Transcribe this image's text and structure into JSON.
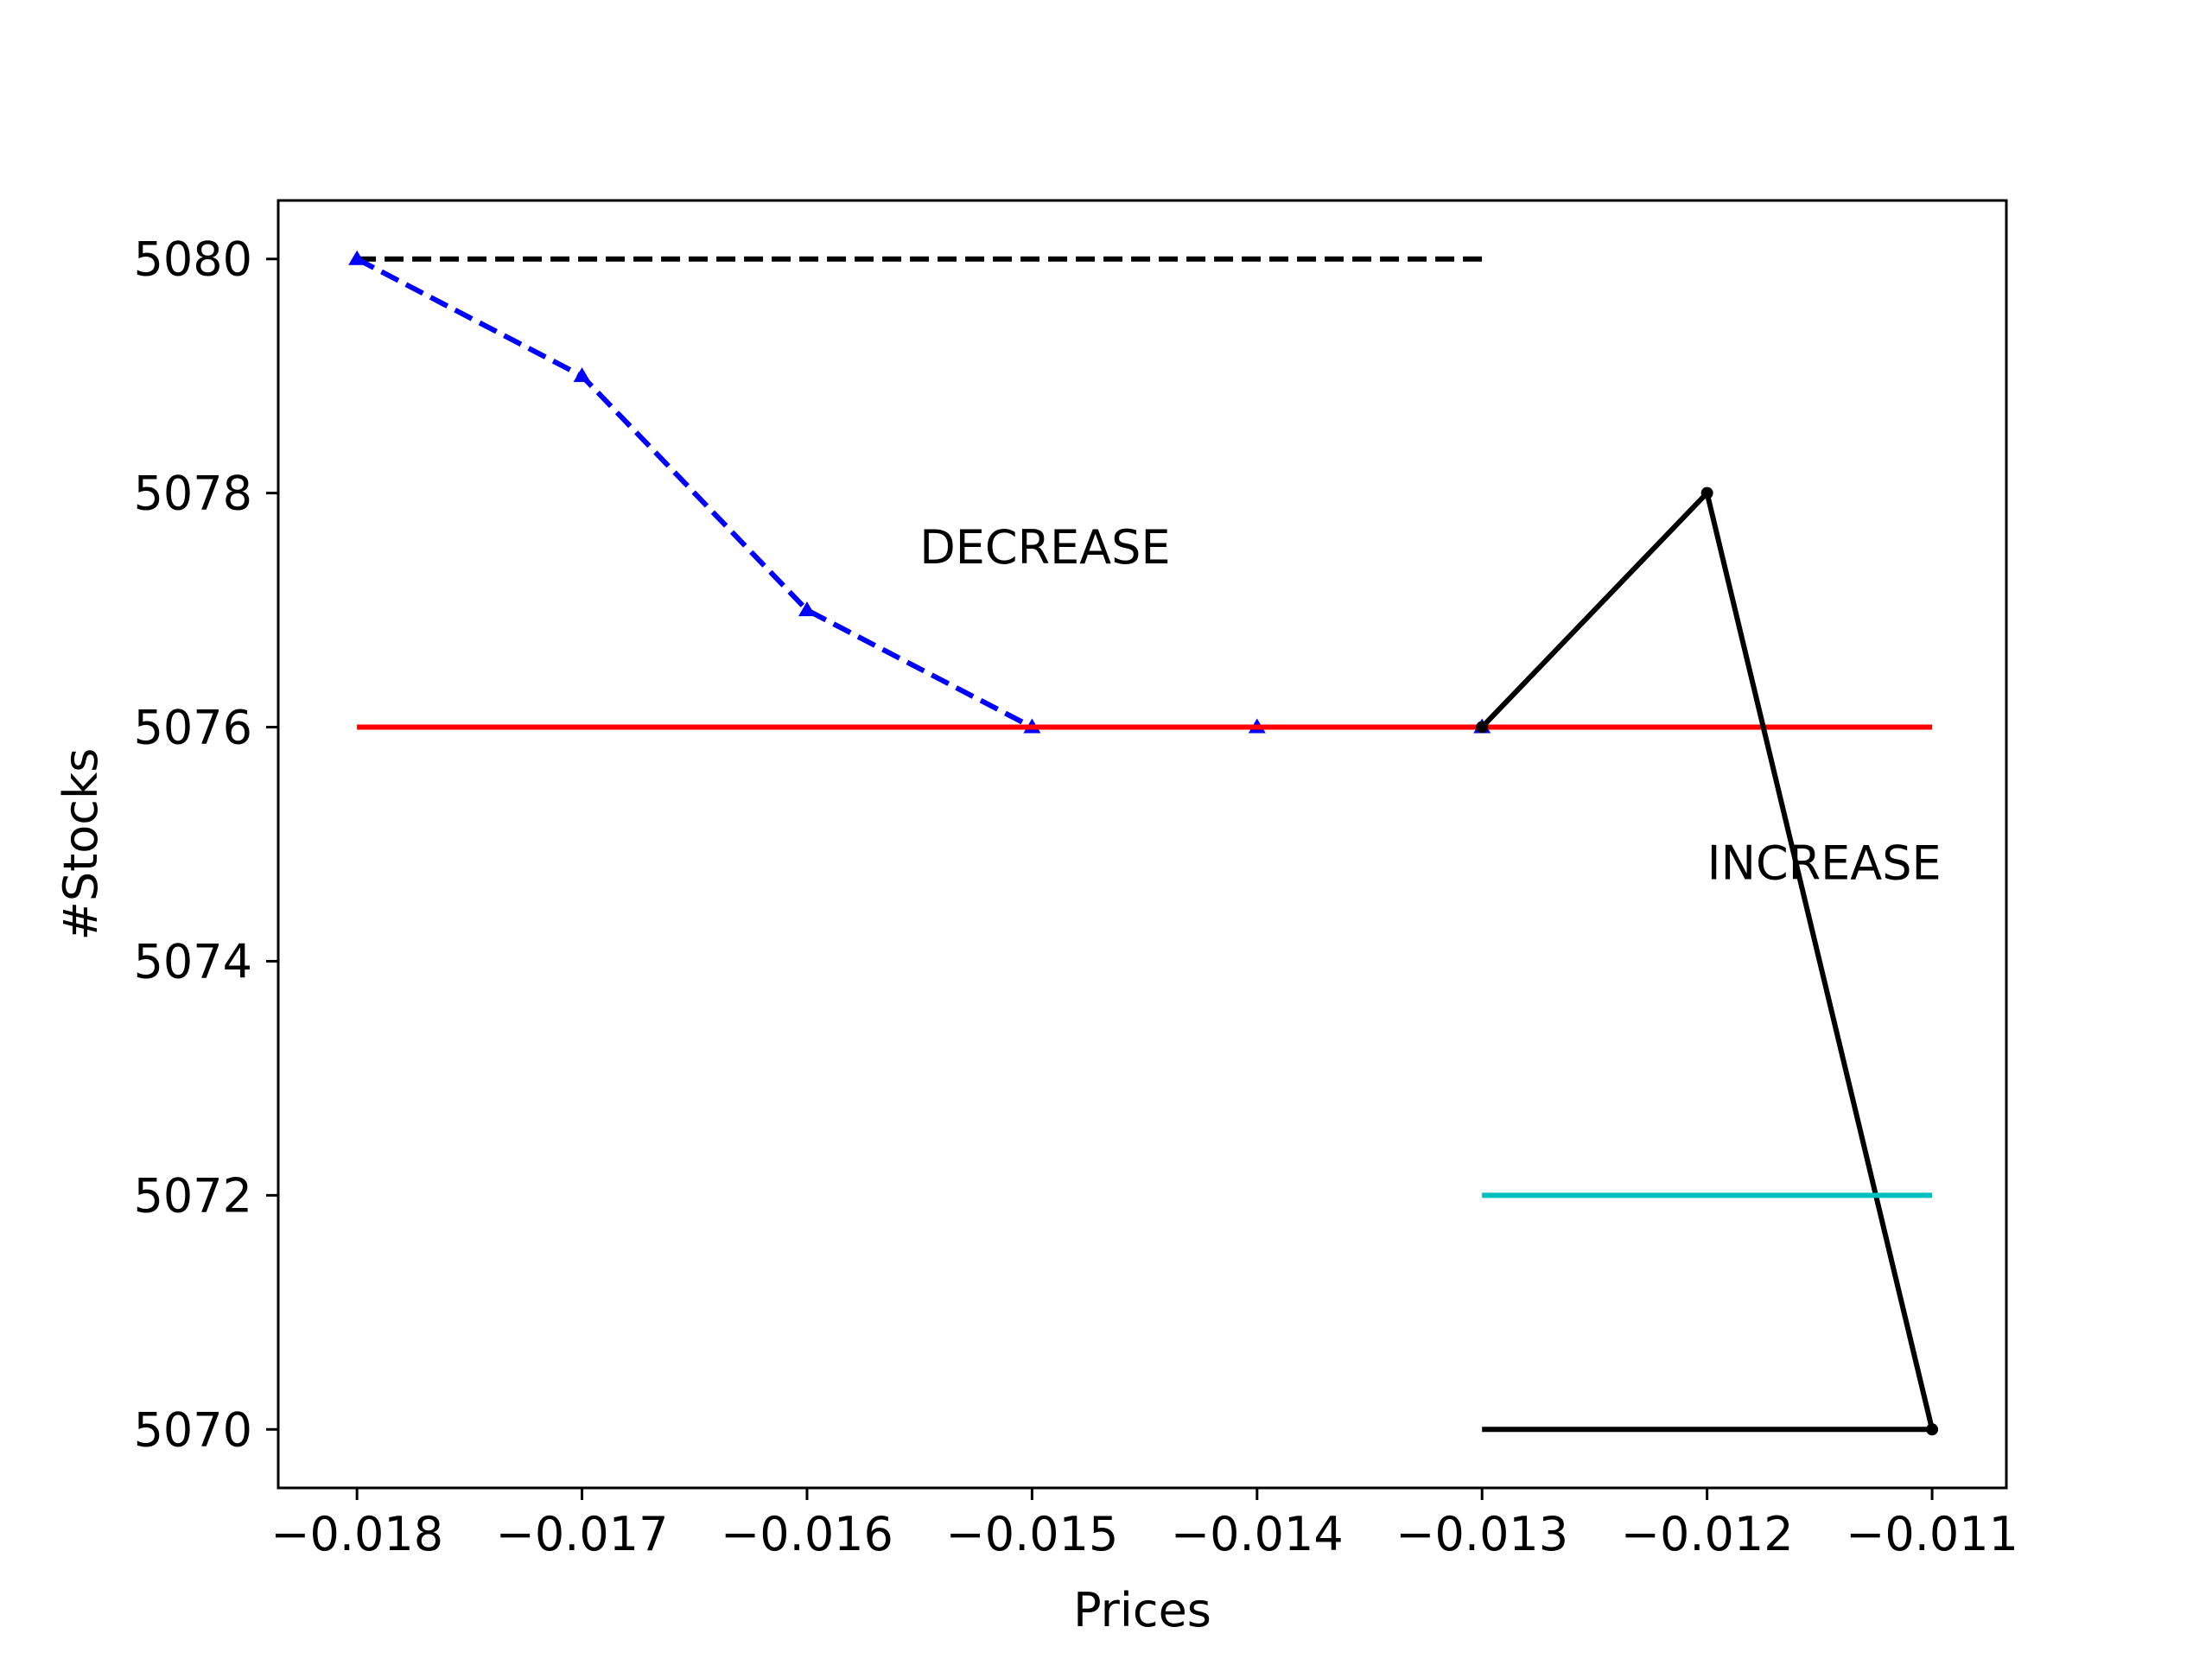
{
  "chart_data": {
    "type": "line",
    "xlabel": "Prices",
    "ylabel": "#Stocks",
    "xlim": [
      -0.01835,
      -0.01067
    ],
    "ylim": [
      5069.5,
      5080.5
    ],
    "x_ticks": [
      -0.018,
      -0.017,
      -0.016,
      -0.015,
      -0.014,
      -0.013,
      -0.012,
      -0.011
    ],
    "x_tick_labels": [
      "−0.018",
      "−0.017",
      "−0.016",
      "−0.015",
      "−0.014",
      "−0.013",
      "−0.012",
      "−0.011"
    ],
    "y_ticks": [
      5070,
      5072,
      5074,
      5076,
      5078,
      5080
    ],
    "y_tick_labels": [
      "5070",
      "5072",
      "5074",
      "5076",
      "5078",
      "5080"
    ],
    "grid": false,
    "legend": "none",
    "series": [
      {
        "color": "#000000",
        "style": "dashed",
        "marker": "none",
        "x": [
          -0.018,
          -0.013
        ],
        "y": [
          5080,
          5080
        ]
      },
      {
        "color": "#0000ff",
        "style": "dashed",
        "marker": "triangle",
        "x": [
          -0.018,
          -0.017,
          -0.016,
          -0.015,
          -0.014,
          -0.013
        ],
        "y": [
          5080,
          5079,
          5077,
          5076,
          5076,
          5076
        ]
      },
      {
        "color": "#ff0000",
        "style": "solid",
        "marker": "none",
        "x": [
          -0.018,
          -0.011
        ],
        "y": [
          5076,
          5076
        ]
      },
      {
        "color": "#000000",
        "style": "solid",
        "marker": "dot",
        "x": [
          -0.013,
          -0.012,
          -0.011
        ],
        "y": [
          5076,
          5078,
          5070
        ]
      },
      {
        "color": "#00bfbf",
        "style": "solid",
        "marker": "none",
        "x": [
          -0.013,
          -0.011
        ],
        "y": [
          5072,
          5072
        ]
      },
      {
        "color": "#000000",
        "style": "solid",
        "marker": "none",
        "x": [
          -0.013,
          -0.011
        ],
        "y": [
          5070,
          5070
        ]
      }
    ],
    "annotations": [
      {
        "text": "DECREASE",
        "x": -0.0155,
        "y": 5077.4
      },
      {
        "text": "INCREASE",
        "x": -0.012,
        "y": 5074.7
      }
    ]
  }
}
